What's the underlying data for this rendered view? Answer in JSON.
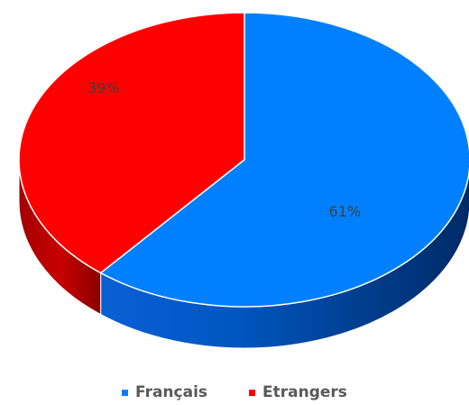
{
  "chart_data": {
    "type": "pie",
    "style": "3d",
    "slices": [
      {
        "label": "Français",
        "value": 61,
        "data_label": "61%",
        "color": "#0080ff"
      },
      {
        "label": "Etrangers",
        "value": 39,
        "data_label": "39%",
        "color": "#ff0000"
      }
    ],
    "legend": {
      "position": "bottom"
    },
    "title": ""
  }
}
